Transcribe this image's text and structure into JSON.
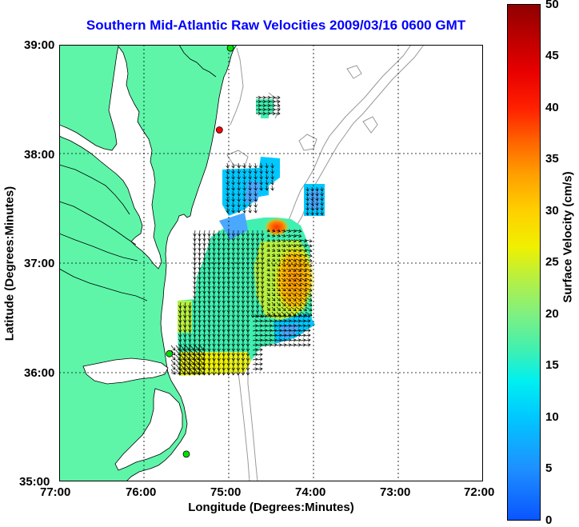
{
  "title": "Southern Mid-Atlantic Raw Velocities 2009/03/16 0600 GMT",
  "axes": {
    "xlabel": "Longitude (Degrees:Minutes)",
    "ylabel": "Latitude (Degrees:Minutes)",
    "x_ticks": [
      "77:00",
      "76:00",
      "75:00",
      "74:00",
      "73:00",
      "72:00"
    ],
    "y_ticks": [
      "39:00",
      "38:00",
      "37:00",
      "36:00",
      "35:00"
    ]
  },
  "colorbar": {
    "label": "Surface Velocity (cm/s)",
    "ticks": [
      "50",
      "45",
      "40",
      "35",
      "30",
      "25",
      "20",
      "15",
      "10",
      "5",
      "0"
    ]
  },
  "colors": {
    "title": "#0000ff",
    "land": "#5ef5a9",
    "bathymetry": "#999999",
    "grid": "#000000",
    "station_green": "#00e000",
    "station_red": "#ff0000"
  },
  "stations": [
    {
      "lon": -74.98,
      "lat": 38.97,
      "status": "green"
    },
    {
      "lon": -75.11,
      "lat": 38.22,
      "status": "red"
    },
    {
      "lon": -75.7,
      "lat": 36.17,
      "status": "green"
    },
    {
      "lon": -75.5,
      "lat": 35.25,
      "status": "green"
    }
  ]
}
